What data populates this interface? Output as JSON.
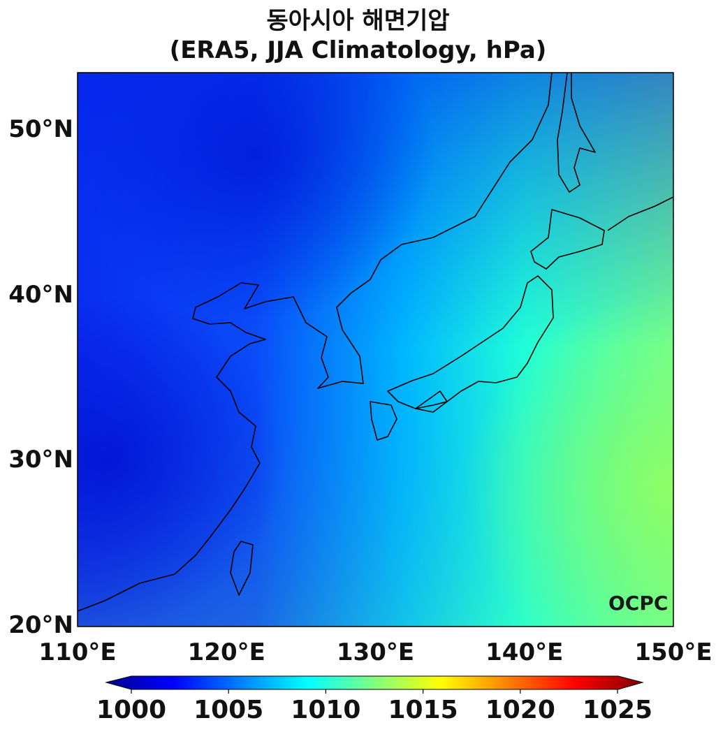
{
  "title": "동아시아 해면기압",
  "subtitle": "(ERA5, JJA Climatology, hPa)",
  "map": {
    "type": "filled contour map",
    "variable_unit": "hPa",
    "extent": {
      "lon": [
        110,
        150
      ],
      "lat": [
        20,
        53.5
      ]
    },
    "lat_ticks": [
      "20°N",
      "30°N",
      "40°N",
      "50°N"
    ],
    "lon_ticks": [
      "110°E",
      "120°E",
      "130°E",
      "140°E",
      "150°E"
    ],
    "colormap": "jet",
    "logo": "OCPC"
  },
  "colorbar": {
    "range": [
      1000,
      1025
    ],
    "extend": "both",
    "ticks": [
      "1000",
      "1005",
      "1010",
      "1015",
      "1020",
      "1025"
    ]
  }
}
